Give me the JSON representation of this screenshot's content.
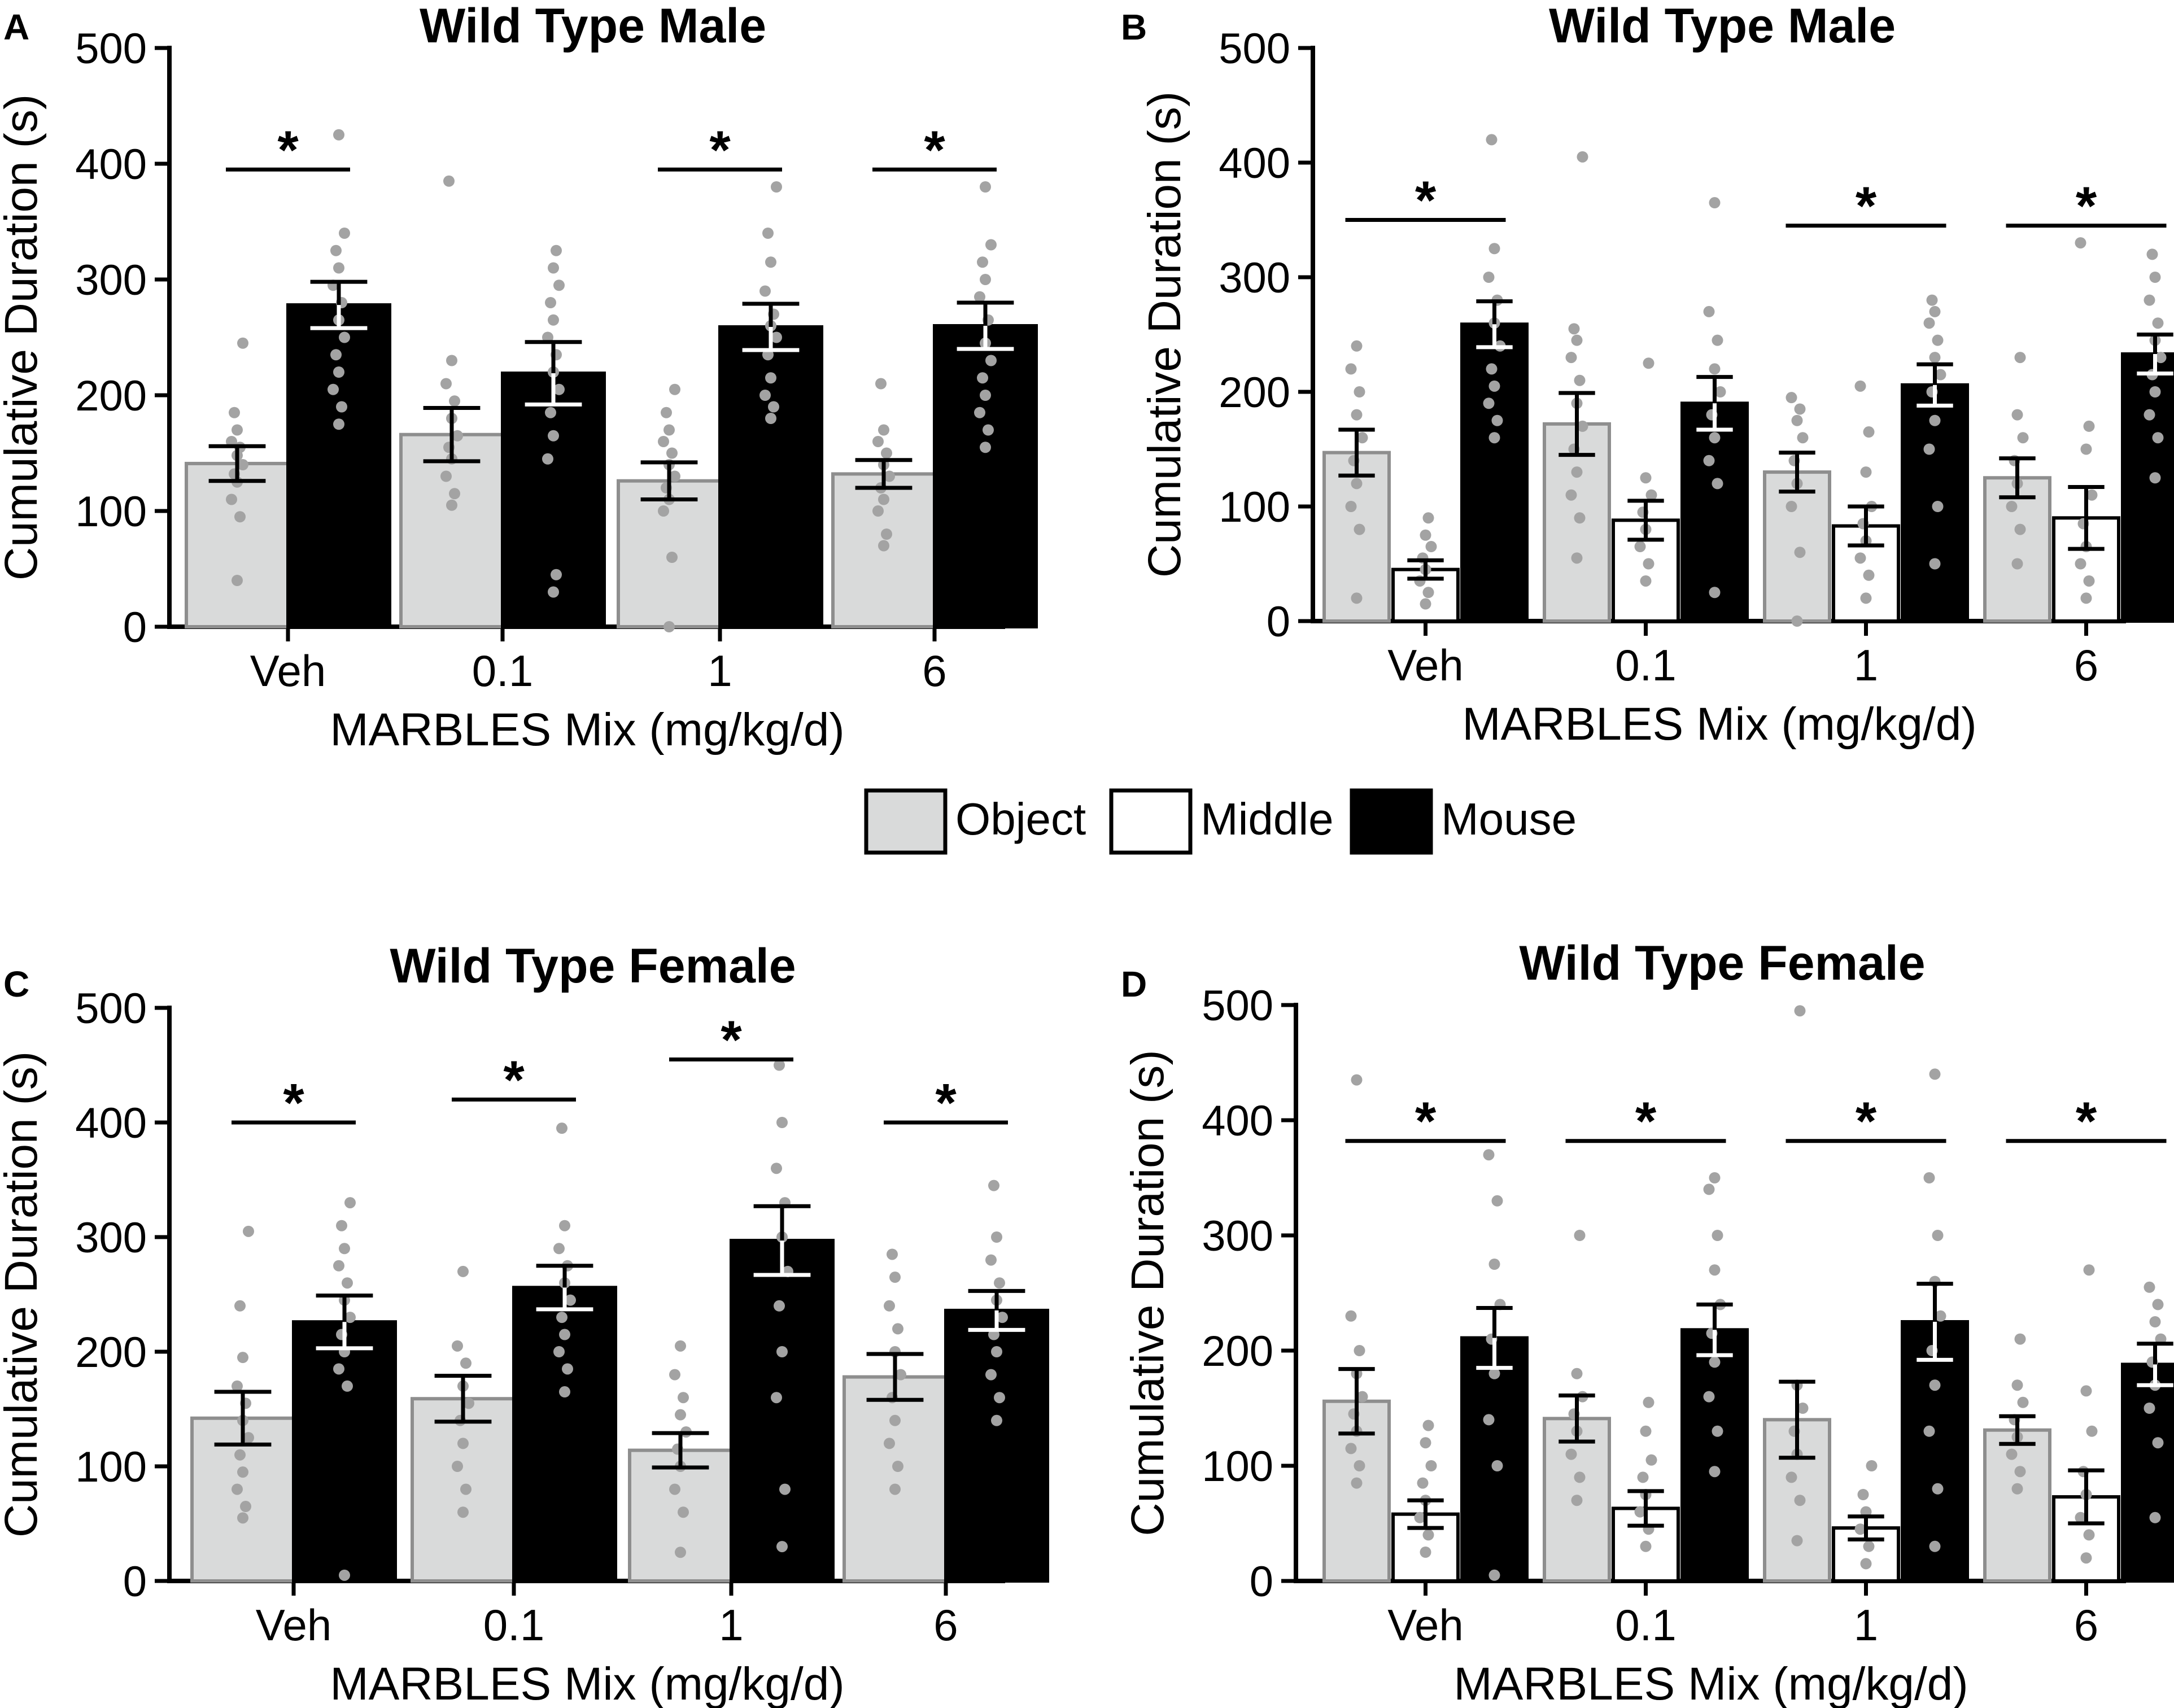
{
  "colors": {
    "object": "#d9dada",
    "middle": "#ffffff",
    "mouse": "#000000",
    "dot": "#a3a3a3",
    "axis": "#000000"
  },
  "legend": {
    "items": [
      {
        "key": "object",
        "label": "Object"
      },
      {
        "key": "middle",
        "label": "Middle"
      },
      {
        "key": "mouse",
        "label": "Mouse"
      }
    ]
  },
  "chart_data": [
    {
      "panel": "A",
      "type": "bar",
      "title": "Wild Type Male",
      "xlabel": "MARBLES Mix (mg/kg/d)",
      "ylabel": "Cumulative Duration (s)",
      "ylim": [
        0,
        500
      ],
      "yticks": [
        0,
        100,
        200,
        300,
        400,
        500
      ],
      "categories": [
        "Veh",
        "0.1",
        "1",
        "6"
      ],
      "series": [
        {
          "name": "Object",
          "key": "object",
          "values": [
            141,
            166,
            126,
            132
          ],
          "sem": [
            15,
            23,
            16,
            12
          ],
          "points": [
            [
              40,
              95,
              110,
              125,
              132,
              140,
              148,
              155,
              160,
              170,
              185,
              245
            ],
            [
              105,
              115,
              130,
              145,
              155,
              165,
              180,
              195,
              210,
              230,
              385
            ],
            [
              0,
              60,
              100,
              110,
              120,
              130,
              140,
              150,
              160,
              170,
              185,
              205
            ],
            [
              70,
              80,
              100,
              110,
              120,
              130,
              140,
              150,
              160,
              170,
              210
            ]
          ]
        },
        {
          "name": "Mouse",
          "key": "mouse",
          "values": [
            278,
            219,
            259,
            260
          ],
          "sem": [
            20,
            27,
            20,
            20
          ],
          "points": [
            [
              175,
              190,
              205,
              220,
              235,
              250,
              265,
              280,
              295,
              310,
              325,
              340,
              425
            ],
            [
              30,
              45,
              145,
              165,
              185,
              205,
              220,
              235,
              250,
              265,
              280,
              295,
              310,
              325
            ],
            [
              180,
              190,
              200,
              215,
              235,
              250,
              260,
              270,
              290,
              315,
              340,
              380
            ],
            [
              155,
              170,
              185,
              200,
              215,
              230,
              245,
              265,
              285,
              300,
              315,
              330,
              380
            ]
          ]
        }
      ],
      "significance": [
        {
          "category": "Veh",
          "label": "*",
          "y": 395
        },
        {
          "category": "1",
          "label": "*",
          "y": 395
        },
        {
          "category": "6",
          "label": "*",
          "y": 395
        }
      ]
    },
    {
      "panel": "B",
      "type": "bar",
      "title": "Wild Type Male",
      "xlabel": "MARBLES Mix (mg/kg/d)",
      "ylabel": "Cumulative Duration (s)",
      "ylim": [
        0,
        500
      ],
      "yticks": [
        0,
        100,
        200,
        300,
        400,
        500
      ],
      "categories": [
        "Veh",
        "0.1",
        "1",
        "6"
      ],
      "series": [
        {
          "name": "Object",
          "key": "object",
          "values": [
            147,
            172,
            130,
            125
          ],
          "sem": [
            20,
            27,
            17,
            17
          ],
          "points": [
            [
              20,
              80,
              100,
              120,
              140,
              160,
              180,
              200,
              220,
              240
            ],
            [
              55,
              90,
              110,
              130,
              150,
              170,
              190,
              210,
              230,
              245,
              255,
              405
            ],
            [
              0,
              60,
              100,
              120,
              140,
              160,
              175,
              185,
              195
            ],
            [
              50,
              80,
              100,
              120,
              140,
              160,
              180,
              230
            ]
          ]
        },
        {
          "name": "Middle",
          "key": "middle",
          "values": [
            45,
            88,
            83,
            90
          ],
          "sem": [
            8,
            17,
            17,
            27
          ],
          "points": [
            [
              15,
              25,
              35,
              45,
              55,
              65,
              75,
              90
            ],
            [
              35,
              50,
              65,
              80,
              95,
              110,
              125,
              225
            ],
            [
              20,
              40,
              55,
              70,
              85,
              100,
              130,
              165,
              205
            ],
            [
              20,
              35,
              50,
              65,
              85,
              110,
              150,
              170,
              330
            ]
          ]
        },
        {
          "name": "Mouse",
          "key": "mouse",
          "values": [
            259,
            190,
            206,
            233
          ],
          "sem": [
            20,
            23,
            18,
            17
          ],
          "points": [
            [
              160,
              175,
              190,
              205,
              220,
              240,
              260,
              280,
              300,
              325,
              420
            ],
            [
              25,
              120,
              140,
              160,
              180,
              200,
              220,
              245,
              270,
              365
            ],
            [
              50,
              100,
              150,
              175,
              200,
              215,
              230,
              245,
              260,
              270,
              280
            ],
            [
              125,
              160,
              180,
              200,
              215,
              230,
              245,
              260,
              280,
              300,
              320
            ]
          ]
        }
      ],
      "significance": [
        {
          "category": "Veh",
          "label": "*",
          "y": 350
        },
        {
          "category": "1",
          "label": "*",
          "y": 345
        },
        {
          "category": "6",
          "label": "*",
          "y": 345
        }
      ]
    },
    {
      "panel": "C",
      "type": "bar",
      "title": "Wild Type Female",
      "xlabel": "MARBLES Mix (mg/kg/d)",
      "ylabel": "Cumulative Duration (s)",
      "ylim": [
        0,
        500
      ],
      "yticks": [
        0,
        100,
        200,
        300,
        400,
        500
      ],
      "categories": [
        "Veh",
        "0.1",
        "1",
        "6"
      ],
      "series": [
        {
          "name": "Object",
          "key": "object",
          "values": [
            142,
            159,
            114,
            178
          ],
          "sem": [
            23,
            20,
            15,
            20
          ],
          "points": [
            [
              55,
              65,
              80,
              95,
              110,
              125,
              140,
              155,
              170,
              195,
              240,
              305
            ],
            [
              60,
              80,
              100,
              120,
              140,
              155,
              170,
              190,
              205,
              270
            ],
            [
              25,
              60,
              80,
              100,
              115,
              130,
              145,
              160,
              180,
              205
            ],
            [
              80,
              100,
              120,
              140,
              160,
              180,
              200,
              220,
              240,
              265,
              285
            ]
          ]
        },
        {
          "name": "Mouse",
          "key": "mouse",
          "values": [
            226,
            256,
            297,
            236
          ],
          "sem": [
            23,
            19,
            30,
            17
          ],
          "points": [
            [
              5,
              170,
              185,
              200,
              215,
              230,
              245,
              260,
              275,
              290,
              310,
              330
            ],
            [
              165,
              185,
              200,
              215,
              230,
              245,
              260,
              275,
              290,
              310,
              395
            ],
            [
              30,
              80,
              160,
              200,
              240,
              270,
              300,
              330,
              360,
              400,
              450
            ],
            [
              140,
              160,
              180,
              200,
              215,
              230,
              245,
              260,
              280,
              300,
              345
            ]
          ]
        }
      ],
      "significance": [
        {
          "category": "Veh",
          "label": "*",
          "y": 400
        },
        {
          "category": "0.1",
          "label": "*",
          "y": 420
        },
        {
          "category": "1",
          "label": "*",
          "y": 455
        },
        {
          "category": "6",
          "label": "*",
          "y": 400
        }
      ]
    },
    {
      "panel": "D",
      "type": "bar",
      "title": "Wild Type Female",
      "xlabel": "MARBLES Mix (mg/kg/d)",
      "ylabel": "Cumulative Duration (s)",
      "ylim": [
        0,
        500
      ],
      "yticks": [
        0,
        100,
        200,
        300,
        400,
        500
      ],
      "categories": [
        "Veh",
        "0.1",
        "1",
        "6"
      ],
      "series": [
        {
          "name": "Object",
          "key": "object",
          "values": [
            156,
            141,
            140,
            131
          ],
          "sem": [
            28,
            20,
            33,
            12
          ],
          "points": [
            [
              85,
              100,
              115,
              130,
              145,
              160,
              180,
              200,
              230,
              435
            ],
            [
              70,
              90,
              110,
              130,
              145,
              160,
              180,
              300
            ],
            [
              35,
              70,
              90,
              110,
              130,
              150,
              170,
              495
            ],
            [
              80,
              95,
              110,
              125,
              140,
              155,
              170,
              210
            ]
          ]
        },
        {
          "name": "Middle",
          "key": "middle",
          "values": [
            58,
            63,
            46,
            73
          ],
          "sem": [
            12,
            15,
            10,
            23
          ],
          "points": [
            [
              25,
              40,
              55,
              70,
              85,
              100,
              120,
              135
            ],
            [
              30,
              45,
              60,
              75,
              90,
              105,
              130,
              155
            ],
            [
              15,
              30,
              45,
              60,
              75,
              100
            ],
            [
              20,
              40,
              55,
              75,
              95,
              130,
              165,
              270
            ]
          ]
        },
        {
          "name": "Mouse",
          "key": "mouse",
          "values": [
            211,
            218,
            225,
            188
          ],
          "sem": [
            26,
            22,
            33,
            18
          ],
          "points": [
            [
              5,
              100,
              140,
              180,
              210,
              240,
              275,
              330,
              370
            ],
            [
              95,
              130,
              160,
              190,
              215,
              240,
              270,
              300,
              340,
              350
            ],
            [
              30,
              80,
              130,
              170,
              200,
              230,
              260,
              300,
              350,
              440
            ],
            [
              55,
              120,
              150,
              170,
              190,
              210,
              225,
              240,
              255
            ]
          ]
        }
      ],
      "significance": [
        {
          "category": "Veh",
          "label": "*",
          "y": 382
        },
        {
          "category": "0.1",
          "label": "*",
          "y": 382
        },
        {
          "category": "1",
          "label": "*",
          "y": 382
        },
        {
          "category": "6",
          "label": "*",
          "y": 382
        }
      ]
    }
  ]
}
